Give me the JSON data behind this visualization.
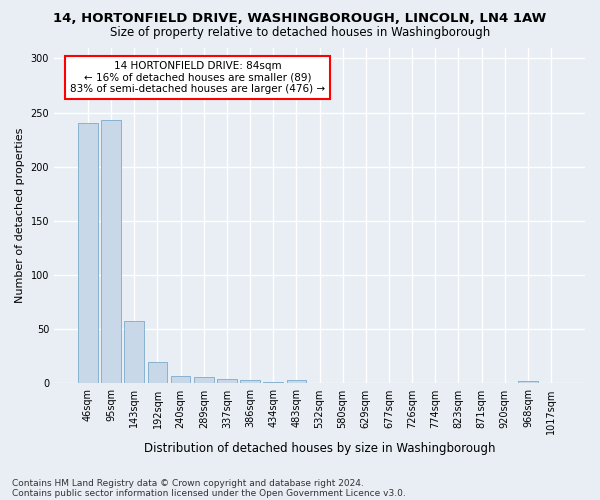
{
  "title_line1": "14, HORTONFIELD DRIVE, WASHINGBOROUGH, LINCOLN, LN4 1AW",
  "title_line2": "Size of property relative to detached houses in Washingborough",
  "xlabel": "Distribution of detached houses by size in Washingborough",
  "ylabel": "Number of detached properties",
  "categories": [
    "46sqm",
    "95sqm",
    "143sqm",
    "192sqm",
    "240sqm",
    "289sqm",
    "337sqm",
    "386sqm",
    "434sqm",
    "483sqm",
    "532sqm",
    "580sqm",
    "629sqm",
    "677sqm",
    "726sqm",
    "774sqm",
    "823sqm",
    "871sqm",
    "920sqm",
    "968sqm",
    "1017sqm"
  ],
  "values": [
    240,
    243,
    58,
    20,
    7,
    6,
    4,
    3,
    1,
    3,
    0,
    0,
    0,
    0,
    0,
    0,
    0,
    0,
    0,
    2,
    0
  ],
  "bar_color": "#c8d8e8",
  "bar_edge_color": "#7aaac8",
  "annotation_text": "14 HORTONFIELD DRIVE: 84sqm\n← 16% of detached houses are smaller (89)\n83% of semi-detached houses are larger (476) →",
  "annotation_box_color": "white",
  "annotation_box_edge_color": "red",
  "ylim": [
    0,
    310
  ],
  "yticks": [
    0,
    50,
    100,
    150,
    200,
    250,
    300
  ],
  "footnote_line1": "Contains HM Land Registry data © Crown copyright and database right 2024.",
  "footnote_line2": "Contains public sector information licensed under the Open Government Licence v3.0.",
  "background_color": "#e8eef4",
  "grid_color": "white",
  "title_fontsize": 9.5,
  "subtitle_fontsize": 8.5,
  "ylabel_fontsize": 8,
  "xlabel_fontsize": 8.5,
  "tick_fontsize": 7,
  "annotation_fontsize": 7.5,
  "footnote_fontsize": 6.5
}
